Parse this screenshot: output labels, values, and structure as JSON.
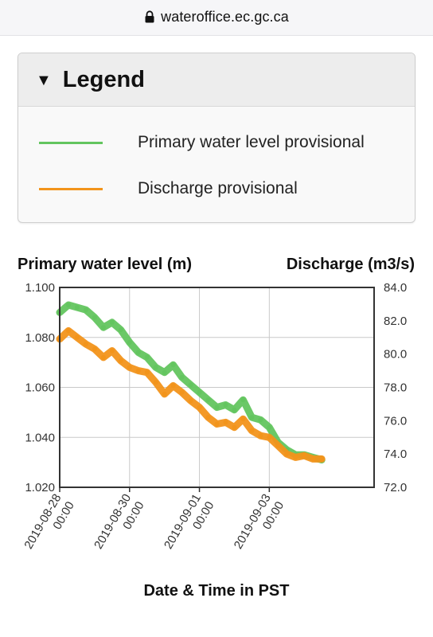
{
  "browser": {
    "url": "wateroffice.ec.gc.ca",
    "lock_icon": "lock-icon"
  },
  "legend": {
    "title": "Legend",
    "toggle_icon": "triangle-down-icon",
    "items": [
      {
        "label": "Primary water level provisional",
        "color": "#63c55f"
      },
      {
        "label": "Discharge provisional",
        "color": "#f2941b"
      }
    ]
  },
  "chart_data": {
    "type": "line",
    "y_left_label": "Primary water level (m)",
    "y_right_label": "Discharge (m3/s)",
    "xlabel": "Date & Time in PST",
    "ylim_left": [
      1.02,
      1.1
    ],
    "ylim_right": [
      72.0,
      84.0
    ],
    "yticks_left": [
      "1.100",
      "1.080",
      "1.060",
      "1.040",
      "1.020"
    ],
    "yticks_right": [
      "84.0",
      "82.0",
      "80.0",
      "78.0",
      "76.0",
      "74.0",
      "72.0"
    ],
    "xticks": [
      {
        "date": "2019-08-28",
        "time": "00:00"
      },
      {
        "date": "2019-08-30",
        "time": "00:00"
      },
      {
        "date": "2019-09-01",
        "time": "00:00"
      },
      {
        "date": "2019-09-03",
        "time": "00:00"
      }
    ],
    "x_range": [
      "2019-08-28 00:00",
      "2019-09-06 00:00"
    ],
    "grid": true,
    "series": [
      {
        "name": "Primary water level provisional",
        "axis": "left",
        "color": "#63c55f",
        "points": [
          [
            "2019-08-28 00:00",
            1.09
          ],
          [
            "2019-08-28 06:00",
            1.093
          ],
          [
            "2019-08-28 12:00",
            1.092
          ],
          [
            "2019-08-28 18:00",
            1.091
          ],
          [
            "2019-08-29 00:00",
            1.088
          ],
          [
            "2019-08-29 06:00",
            1.084
          ],
          [
            "2019-08-29 12:00",
            1.086
          ],
          [
            "2019-08-29 18:00",
            1.083
          ],
          [
            "2019-08-30 00:00",
            1.078
          ],
          [
            "2019-08-30 06:00",
            1.074
          ],
          [
            "2019-08-30 12:00",
            1.072
          ],
          [
            "2019-08-30 18:00",
            1.068
          ],
          [
            "2019-08-31 00:00",
            1.066
          ],
          [
            "2019-08-31 06:00",
            1.069
          ],
          [
            "2019-08-31 12:00",
            1.064
          ],
          [
            "2019-08-31 18:00",
            1.061
          ],
          [
            "2019-09-01 00:00",
            1.058
          ],
          [
            "2019-09-01 06:00",
            1.055
          ],
          [
            "2019-09-01 12:00",
            1.052
          ],
          [
            "2019-09-01 18:00",
            1.053
          ],
          [
            "2019-09-02 00:00",
            1.051
          ],
          [
            "2019-09-02 06:00",
            1.055
          ],
          [
            "2019-09-02 12:00",
            1.048
          ],
          [
            "2019-09-02 18:00",
            1.047
          ],
          [
            "2019-09-03 00:00",
            1.044
          ],
          [
            "2019-09-03 06:00",
            1.038
          ],
          [
            "2019-09-03 12:00",
            1.035
          ],
          [
            "2019-09-03 18:00",
            1.033
          ],
          [
            "2019-09-04 00:00",
            1.033
          ],
          [
            "2019-09-04 06:00",
            1.032
          ],
          [
            "2019-09-04 12:00",
            1.031
          ]
        ]
      },
      {
        "name": "Discharge provisional",
        "axis": "right",
        "color": "#f2941b",
        "points": [
          [
            "2019-08-28 00:00",
            80.9
          ],
          [
            "2019-08-28 06:00",
            81.4
          ],
          [
            "2019-08-28 12:00",
            81.0
          ],
          [
            "2019-08-28 18:00",
            80.6
          ],
          [
            "2019-08-29 00:00",
            80.3
          ],
          [
            "2019-08-29 06:00",
            79.8
          ],
          [
            "2019-08-29 12:00",
            80.2
          ],
          [
            "2019-08-29 18:00",
            79.6
          ],
          [
            "2019-08-30 00:00",
            79.2
          ],
          [
            "2019-08-30 06:00",
            79.0
          ],
          [
            "2019-08-30 12:00",
            78.9
          ],
          [
            "2019-08-30 18:00",
            78.3
          ],
          [
            "2019-08-31 00:00",
            77.6
          ],
          [
            "2019-08-31 06:00",
            78.1
          ],
          [
            "2019-08-31 12:00",
            77.7
          ],
          [
            "2019-08-31 18:00",
            77.2
          ],
          [
            "2019-09-01 00:00",
            76.8
          ],
          [
            "2019-09-01 06:00",
            76.2
          ],
          [
            "2019-09-01 12:00",
            75.8
          ],
          [
            "2019-09-01 18:00",
            75.9
          ],
          [
            "2019-09-02 00:00",
            75.6
          ],
          [
            "2019-09-02 06:00",
            76.1
          ],
          [
            "2019-09-02 12:00",
            75.4
          ],
          [
            "2019-09-02 18:00",
            75.1
          ],
          [
            "2019-09-03 00:00",
            75.0
          ],
          [
            "2019-09-03 06:00",
            74.5
          ],
          [
            "2019-09-03 12:00",
            74.0
          ],
          [
            "2019-09-03 18:00",
            73.8
          ],
          [
            "2019-09-04 00:00",
            73.9
          ],
          [
            "2019-09-04 06:00",
            73.7
          ],
          [
            "2019-09-04 12:00",
            73.7
          ]
        ]
      }
    ]
  }
}
